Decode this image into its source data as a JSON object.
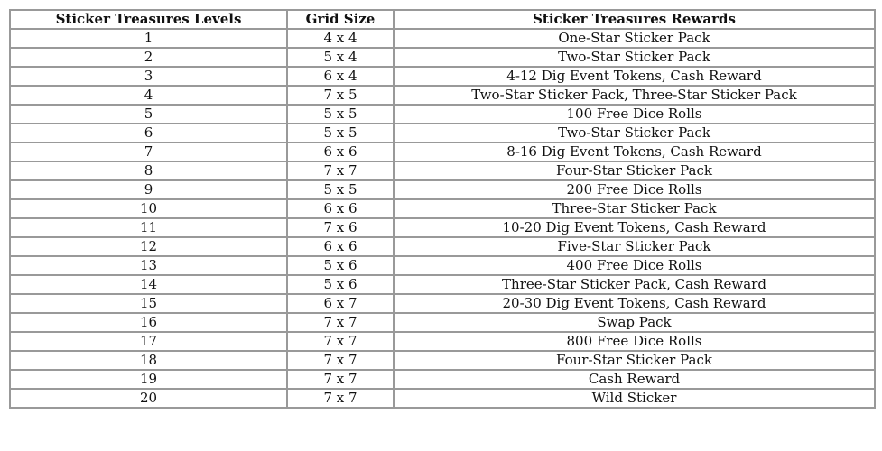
{
  "headers": [
    "Sticker Treasures Levels",
    "Grid Size",
    "Sticker Treasures Rewards"
  ],
  "rows": [
    [
      "1",
      "4 x 4",
      "One-Star Sticker Pack"
    ],
    [
      "2",
      "5 x 4",
      "Two-Star Sticker Pack"
    ],
    [
      "3",
      "6 x 4",
      "4-12 Dig Event Tokens, Cash Reward"
    ],
    [
      "4",
      "7 x 5",
      "Two-Star Sticker Pack, Three-Star Sticker Pack"
    ],
    [
      "5",
      "5 x 5",
      "100 Free Dice Rolls"
    ],
    [
      "6",
      "5 x 5",
      "Two-Star Sticker Pack"
    ],
    [
      "7",
      "6 x 6",
      "8-16 Dig Event Tokens, Cash Reward"
    ],
    [
      "8",
      "7 x 7",
      "Four-Star Sticker Pack"
    ],
    [
      "9",
      "5 x 5",
      "200 Free Dice Rolls"
    ],
    [
      "10",
      "6 x 6",
      "Three-Star Sticker Pack"
    ],
    [
      "11",
      "7 x 6",
      "10-20 Dig Event Tokens, Cash Reward"
    ],
    [
      "12",
      "6 x 6",
      "Five-Star Sticker Pack"
    ],
    [
      "13",
      "5 x 6",
      "400 Free Dice Rolls"
    ],
    [
      "14",
      "5 x 6",
      "Three-Star Sticker Pack, Cash Reward"
    ],
    [
      "15",
      "6 x 7",
      "20-30 Dig Event Tokens, Cash Reward"
    ],
    [
      "16",
      "7 x 7",
      "Swap Pack"
    ],
    [
      "17",
      "7 x 7",
      "800 Free Dice Rolls"
    ],
    [
      "18",
      "7 x 7",
      "Four-Star Sticker Pack"
    ],
    [
      "19",
      "7 x 7",
      "Cash Reward"
    ],
    [
      "20",
      "7 x 7",
      "Wild Sticker"
    ]
  ]
}
